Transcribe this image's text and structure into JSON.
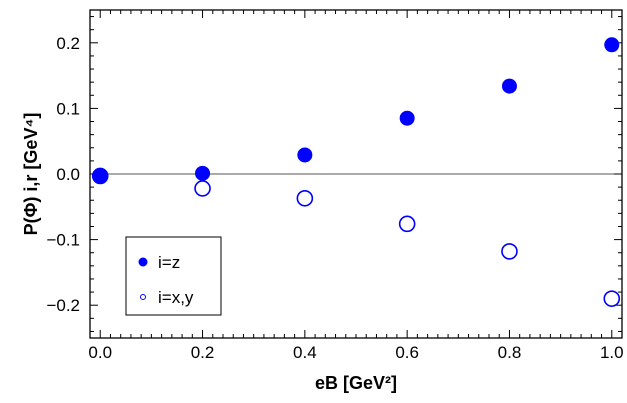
{
  "chart_data": {
    "type": "scatter",
    "xlabel": "eB [GeV²]",
    "ylabel": "P(Φ) i,r [GeV⁴]",
    "xlim": [
      -0.02,
      1.02
    ],
    "ylim": [
      -0.25,
      0.25
    ],
    "x_ticks": [
      0.0,
      0.2,
      0.4,
      0.6,
      0.8,
      1.0
    ],
    "x_tick_labels": [
      "0.0",
      "0.2",
      "0.4",
      "0.6",
      "0.8",
      "1.0"
    ],
    "y_ticks": [
      0.2,
      0.1,
      0.0,
      -0.1,
      -0.2
    ],
    "y_tick_labels": [
      "0.2",
      "0.1",
      "0.0",
      "−0.1",
      "−0.2"
    ],
    "zero_line": true,
    "grid": false,
    "legend_position": "bottom-left",
    "series": [
      {
        "name": "i=z",
        "marker": "filled-circle",
        "color": "#0000ff",
        "x": [
          0.0,
          0.2,
          0.4,
          0.6,
          0.8,
          1.0
        ],
        "y": [
          -0.003,
          0.001,
          0.029,
          0.085,
          0.134,
          0.197
        ]
      },
      {
        "name": "i=x,y",
        "marker": "open-circle",
        "color": "#0000ff",
        "x": [
          0.0,
          0.2,
          0.4,
          0.6,
          0.8,
          1.0
        ],
        "y": [
          -0.003,
          -0.022,
          -0.037,
          -0.076,
          -0.118,
          -0.19
        ]
      }
    ]
  }
}
